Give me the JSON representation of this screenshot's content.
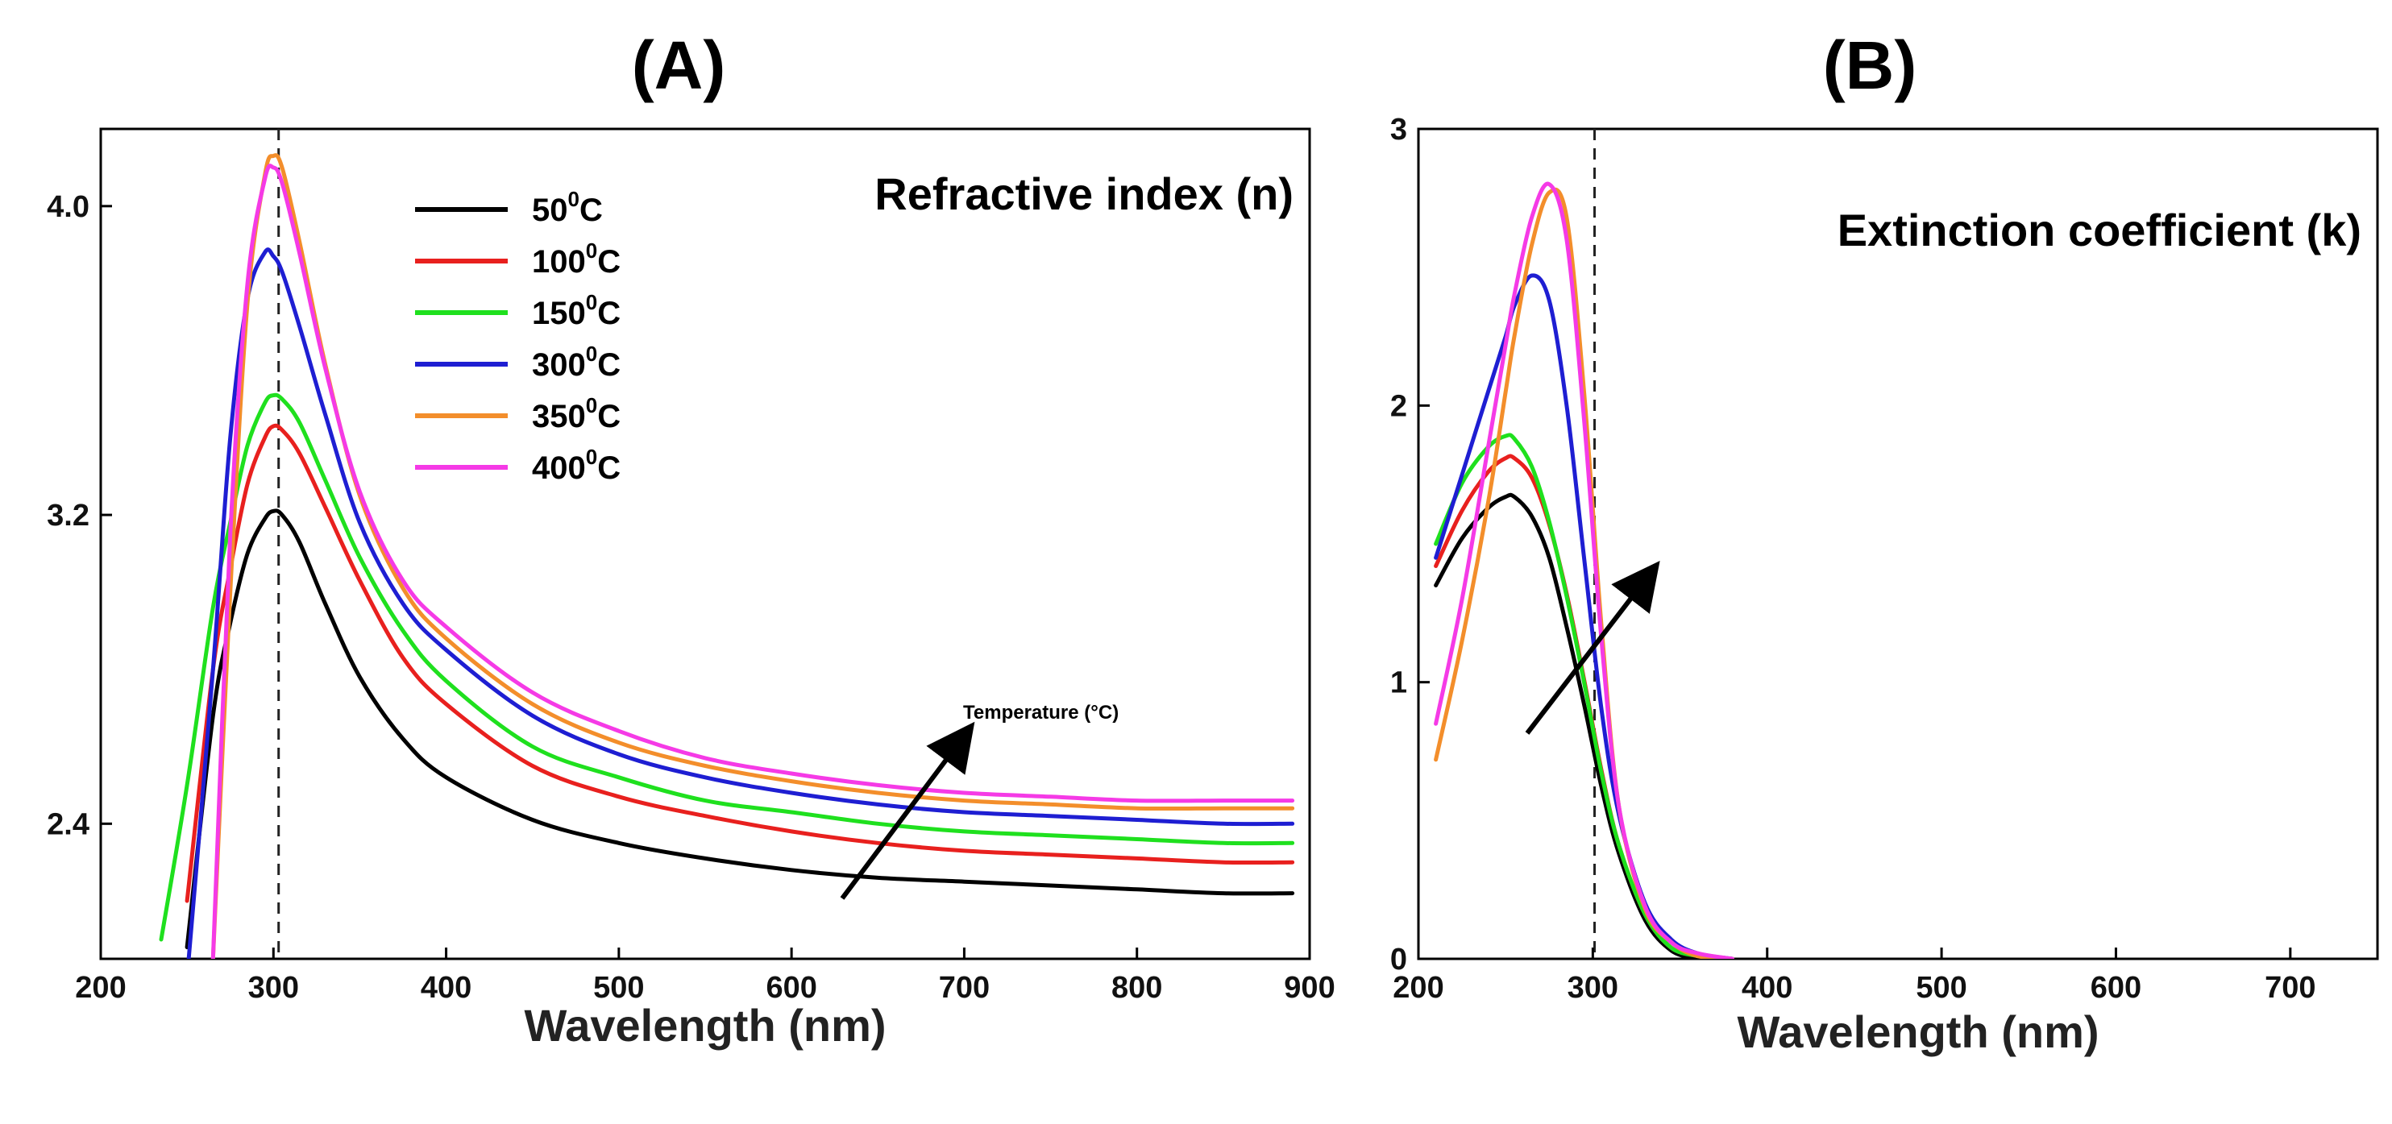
{
  "panel_a_label": "(A)",
  "panel_b_label": "(B)",
  "temperature_arrow_label": "Temperature (°C)",
  "series_colors": [
    "#000000",
    "#e8201e",
    "#1fe01e",
    "#1e1ed2",
    "#f38e2b",
    "#f53ae6"
  ],
  "chart_data": [
    {
      "type": "line",
      "title": "Refractive index (n)",
      "xlabel": "Wavelength (nm)",
      "ylabel": "",
      "xlim": [
        200,
        900
      ],
      "ylim": [
        2.05,
        4.2
      ],
      "xticks": [
        "200",
        "300",
        "400",
        "500",
        "600",
        "700",
        "800",
        "900"
      ],
      "yticks": [
        "2.4",
        "3.2",
        "4.0"
      ],
      "reference_line_x": 303,
      "legend": {
        "position": "top-center",
        "entries": [
          {
            "value": "50",
            "sup": "0",
            "unit": "C"
          },
          {
            "value": "100",
            "sup": "0",
            "unit": "C"
          },
          {
            "value": "150",
            "sup": "0",
            "unit": "C"
          },
          {
            "value": "300",
            "sup": "0",
            "unit": "C"
          },
          {
            "value": "350",
            "sup": "0",
            "unit": "C"
          },
          {
            "value": "400",
            "sup": "0",
            "unit": "C"
          }
        ]
      },
      "x": [
        235,
        250,
        265,
        275,
        285,
        295,
        300,
        305,
        315,
        330,
        350,
        375,
        400,
        450,
        500,
        550,
        600,
        650,
        700,
        750,
        800,
        850,
        890
      ],
      "series": [
        {
          "name": "50°C",
          "values": [
            null,
            2.08,
            2.68,
            2.92,
            3.1,
            3.19,
            3.21,
            3.2,
            3.13,
            2.97,
            2.78,
            2.62,
            2.52,
            2.41,
            2.35,
            2.31,
            2.28,
            2.26,
            2.25,
            2.24,
            2.23,
            2.22,
            2.22
          ]
        },
        {
          "name": "100°C",
          "values": [
            null,
            2.2,
            2.8,
            3.06,
            3.28,
            3.4,
            3.43,
            3.42,
            3.36,
            3.22,
            3.03,
            2.83,
            2.71,
            2.55,
            2.47,
            2.42,
            2.38,
            2.35,
            2.33,
            2.32,
            2.31,
            2.3,
            2.3
          ]
        },
        {
          "name": "150°C",
          "values": [
            2.1,
            2.5,
            2.96,
            3.18,
            3.38,
            3.49,
            3.51,
            3.5,
            3.44,
            3.29,
            3.09,
            2.9,
            2.77,
            2.6,
            2.52,
            2.46,
            2.43,
            2.4,
            2.38,
            2.37,
            2.36,
            2.35,
            2.35
          ]
        },
        {
          "name": "300°C",
          "values": [
            null,
            2.0,
            2.8,
            3.4,
            3.76,
            3.88,
            3.87,
            3.83,
            3.69,
            3.46,
            3.18,
            2.97,
            2.85,
            2.68,
            2.58,
            2.52,
            2.48,
            2.45,
            2.43,
            2.42,
            2.41,
            2.4,
            2.4
          ]
        },
        {
          "name": "350°C",
          "values": [
            null,
            null,
            2.05,
            3.0,
            3.75,
            4.08,
            4.13,
            4.1,
            3.91,
            3.59,
            3.25,
            3.01,
            2.88,
            2.71,
            2.61,
            2.55,
            2.51,
            2.48,
            2.46,
            2.45,
            2.44,
            2.44,
            2.44
          ]
        },
        {
          "name": "400°C",
          "values": [
            null,
            null,
            2.05,
            3.15,
            3.8,
            4.07,
            4.1,
            4.06,
            3.88,
            3.58,
            3.26,
            3.03,
            2.91,
            2.74,
            2.64,
            2.57,
            2.53,
            2.5,
            2.48,
            2.47,
            2.46,
            2.46,
            2.46
          ]
        }
      ]
    },
    {
      "type": "line",
      "title": "Extinction coefficient (k)",
      "xlabel": "Wavelength (nm)",
      "ylabel": "",
      "xlim": [
        200,
        750
      ],
      "ylim": [
        0,
        3
      ],
      "xticks": [
        "200",
        "300",
        "400",
        "500",
        "600",
        "700"
      ],
      "yticks": [
        "0",
        "1",
        "2",
        "3"
      ],
      "reference_line_x": 301,
      "x": [
        210,
        225,
        240,
        250,
        255,
        265,
        275,
        285,
        295,
        305,
        315,
        330,
        345,
        360,
        380,
        400
      ],
      "series": [
        {
          "name": "50°C",
          "values": [
            1.35,
            1.52,
            1.63,
            1.67,
            1.67,
            1.6,
            1.45,
            1.2,
            0.92,
            0.62,
            0.38,
            0.14,
            0.03,
            0.0,
            null,
            null
          ]
        },
        {
          "name": "100°C",
          "values": [
            1.42,
            1.62,
            1.76,
            1.81,
            1.81,
            1.74,
            1.57,
            1.32,
            1.01,
            0.68,
            0.41,
            0.16,
            0.04,
            0.01,
            null,
            null
          ]
        },
        {
          "name": "150°C",
          "values": [
            1.5,
            1.72,
            1.85,
            1.89,
            1.88,
            1.78,
            1.58,
            1.31,
            1.0,
            0.67,
            0.41,
            0.16,
            0.04,
            0.01,
            null,
            null
          ]
        },
        {
          "name": "300°C",
          "values": [
            1.45,
            1.75,
            2.05,
            2.25,
            2.36,
            2.47,
            2.38,
            2.0,
            1.45,
            0.9,
            0.52,
            0.2,
            0.07,
            0.02,
            0.0,
            null
          ]
        },
        {
          "name": "350°C",
          "values": [
            0.72,
            1.15,
            1.65,
            2.05,
            2.25,
            2.58,
            2.77,
            2.68,
            2.05,
            1.2,
            0.55,
            0.18,
            0.06,
            0.01,
            0.0,
            null
          ]
        },
        {
          "name": "400°C",
          "values": [
            0.85,
            1.3,
            1.85,
            2.22,
            2.4,
            2.68,
            2.8,
            2.6,
            1.95,
            1.15,
            0.55,
            0.19,
            0.06,
            0.02,
            0.0,
            null
          ]
        }
      ]
    }
  ]
}
